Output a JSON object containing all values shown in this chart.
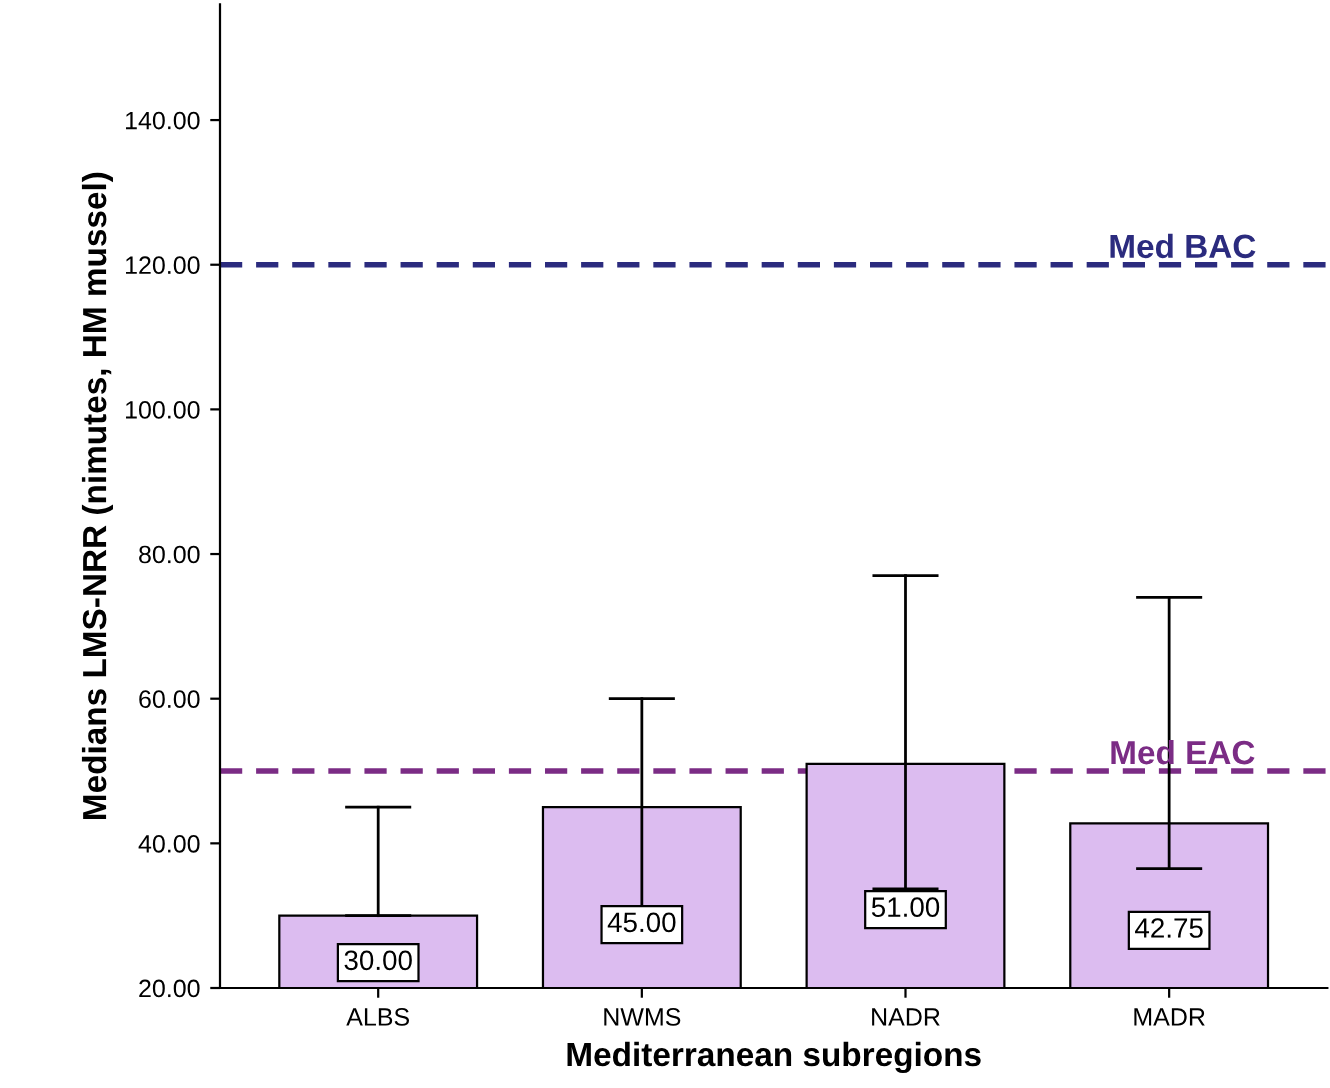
{
  "chart_data": {
    "type": "bar",
    "xlabel": "Mediterranean subregions",
    "ylabel": "Medians LMS-NRR (nimutes, HM mussel)",
    "categories": [
      "ALBS",
      "NWMS",
      "NADR",
      "MADR"
    ],
    "values": [
      30,
      45,
      51,
      42.75
    ],
    "value_labels": [
      "30.00",
      "45.00",
      "51.00",
      "42.75"
    ],
    "errors": [
      [
        30,
        45
      ],
      [
        29.7,
        60
      ],
      [
        33.7,
        77
      ],
      [
        36.5,
        74
      ]
    ],
    "color": "#dcbcf0",
    "ylim": [
      20,
      156
    ],
    "yticks": [
      {
        "value": 20,
        "label": "20.00"
      },
      {
        "value": 40,
        "label": "40.00"
      },
      {
        "value": 60,
        "label": "60.00"
      },
      {
        "value": 80,
        "label": "80.00"
      },
      {
        "value": 100,
        "label": "100.00"
      },
      {
        "value": 120,
        "label": "120.00"
      },
      {
        "value": 140,
        "label": "140.00"
      }
    ],
    "ref_lines": [
      {
        "axis": "y",
        "value": 120,
        "label": "Med BAC",
        "color": "#2b2b7e",
        "line_style": "dashed"
      },
      {
        "axis": "y",
        "value": 50,
        "label": "Med EAC",
        "color": "#7b2c85",
        "line_style": "dashed"
      }
    ],
    "grid": false,
    "legend": false
  }
}
